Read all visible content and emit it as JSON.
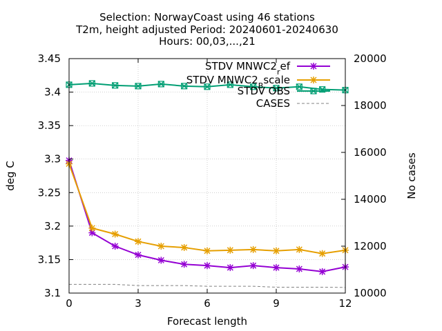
{
  "chart_data": {
    "type": "line",
    "title_lines": [
      "Selection: NorwayCoast using    46 stations",
      "T2m, height adjusted   Period: 20240601-20240630",
      "Hours: 00,03,...,21"
    ],
    "xlabel": "Forecast length",
    "ylabel": "deg C",
    "y2label": "No cases",
    "xlim": [
      0,
      12
    ],
    "ylim": [
      3.1,
      3.45
    ],
    "y2lim": [
      10000,
      20000
    ],
    "x_ticks": [
      "0",
      "3",
      "6",
      "9",
      "12"
    ],
    "x_tick_values": [
      0,
      3,
      6,
      9,
      12
    ],
    "y_ticks": [
      "3.1",
      "3.15",
      "3.2",
      "3.25",
      "3.3",
      "3.35",
      "3.4",
      "3.45"
    ],
    "y_tick_values": [
      3.1,
      3.15,
      3.2,
      3.25,
      3.3,
      3.35,
      3.4,
      3.45
    ],
    "y2_ticks": [
      "10000",
      "12000",
      "14000",
      "16000",
      "18000",
      "20000"
    ],
    "y2_tick_values": [
      10000,
      12000,
      14000,
      16000,
      18000,
      20000
    ],
    "grid": true,
    "legend_position": "top-right",
    "x": [
      0,
      1,
      2,
      3,
      4,
      5,
      6,
      7,
      8,
      9,
      10,
      11,
      12
    ],
    "series": [
      {
        "name": "STDV MNWC2_ref",
        "name_main": "STDV MNWC2",
        "name_sub": "r",
        "name_rest": "ef",
        "axis": "y1",
        "color": "#9400d3",
        "values": [
          3.298,
          3.19,
          3.17,
          3.157,
          3.149,
          3.143,
          3.141,
          3.138,
          3.141,
          3.138,
          3.136,
          3.132,
          3.139
        ]
      },
      {
        "name": "STDV MNWC2_Bscale",
        "name_main": "STDV MNWC2",
        "name_sub": "B",
        "name_rest": "scale",
        "axis": "y1",
        "color": "#e69f00",
        "values": [
          3.293,
          3.197,
          3.188,
          3.177,
          3.17,
          3.168,
          3.163,
          3.164,
          3.165,
          3.163,
          3.165,
          3.159,
          3.164
        ]
      },
      {
        "name": "STDV OBS",
        "name_main": "STDV OBS",
        "name_sub": "",
        "name_rest": "",
        "axis": "y1",
        "color": "#009e73",
        "values": [
          3.411,
          3.413,
          3.41,
          3.409,
          3.412,
          3.409,
          3.408,
          3.411,
          3.408,
          3.406,
          3.408,
          3.404,
          3.403
        ]
      },
      {
        "name": "CASES",
        "name_main": "CASES",
        "name_sub": "",
        "name_rest": "",
        "axis": "y2",
        "color": "#808080",
        "dashed": true,
        "values": [
          10370,
          10370,
          10370,
          10320,
          10320,
          10320,
          10290,
          10290,
          10290,
          10250,
          10250,
          10250,
          10240
        ]
      }
    ]
  }
}
